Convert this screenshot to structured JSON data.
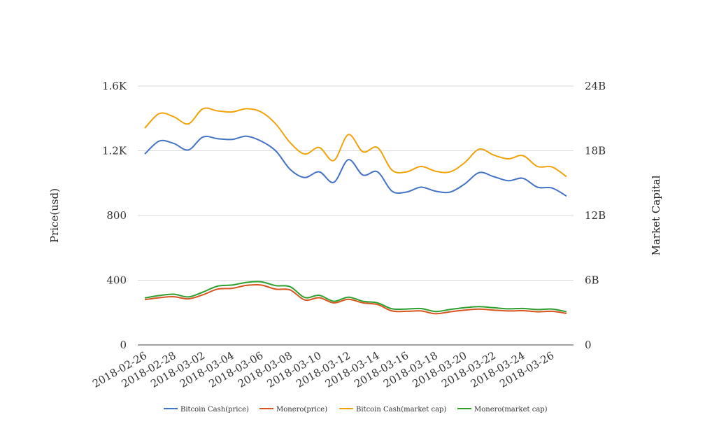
{
  "chart_data": {
    "type": "line",
    "title": "",
    "xlabel": "",
    "ylabel": "Price(usd)",
    "y2label": "Market Capital",
    "ylim": [
      0,
      1600
    ],
    "y2lim": [
      0,
      24000000000
    ],
    "yticks": [
      "0",
      "400",
      "800",
      "1.2K",
      "1.6K"
    ],
    "y2ticks": [
      "0",
      "6B",
      "12B",
      "18B",
      "24B"
    ],
    "xticks": [
      "2018-02-26",
      "2018-02-28",
      "2018-03-02",
      "2018-03-04",
      "2018-03-06",
      "2018-03-08",
      "2018-03-10",
      "2018-03-12",
      "2018-03-14",
      "2018-03-16",
      "2018-03-18",
      "2018-03-20",
      "2018-03-22",
      "2018-03-24",
      "2018-03-26"
    ],
    "x": [
      "2018-02-26",
      "2018-02-27",
      "2018-02-28",
      "2018-03-01",
      "2018-03-02",
      "2018-03-03",
      "2018-03-04",
      "2018-03-05",
      "2018-03-06",
      "2018-03-07",
      "2018-03-08",
      "2018-03-09",
      "2018-03-10",
      "2018-03-11",
      "2018-03-12",
      "2018-03-13",
      "2018-03-14",
      "2018-03-15",
      "2018-03-16",
      "2018-03-17",
      "2018-03-18",
      "2018-03-19",
      "2018-03-20",
      "2018-03-21",
      "2018-03-22",
      "2018-03-23",
      "2018-03-24",
      "2018-03-25",
      "2018-03-26",
      "2018-03-27"
    ],
    "grid": true,
    "legend": "bottom",
    "series": [
      {
        "name": "Bitcoin Cash(price)",
        "axis": "left",
        "color": "#4472c4",
        "values": [
          1180,
          1260,
          1245,
          1205,
          1285,
          1275,
          1270,
          1290,
          1260,
          1200,
          1085,
          1035,
          1070,
          1005,
          1145,
          1050,
          1070,
          950,
          945,
          975,
          950,
          945,
          995,
          1065,
          1040,
          1015,
          1030,
          975,
          970,
          920
        ]
      },
      {
        "name": "Monero(price)",
        "axis": "left",
        "color": "#d9541e",
        "values": [
          280,
          292,
          298,
          285,
          310,
          345,
          350,
          368,
          370,
          345,
          340,
          278,
          292,
          260,
          282,
          260,
          250,
          210,
          208,
          210,
          193,
          205,
          215,
          222,
          215,
          210,
          212,
          205,
          208,
          195
        ]
      },
      {
        "name": "Bitcoin Cash(market cap)",
        "axis": "right",
        "color": "#f0a30a",
        "values": [
          20100000000,
          21450000000,
          21150000000,
          20500000000,
          21900000000,
          21700000000,
          21600000000,
          21900000000,
          21600000000,
          20500000000,
          18750000000,
          17700000000,
          18300000000,
          17100000000,
          19500000000,
          17900000000,
          18300000000,
          16200000000,
          16050000000,
          16550000000,
          16100000000,
          16050000000,
          16900000000,
          18150000000,
          17600000000,
          17250000000,
          17550000000,
          16550000000,
          16500000000,
          15600000000
        ]
      },
      {
        "name": "Monero(market cap)",
        "axis": "right",
        "color": "#2e9e2e",
        "values": [
          4350000000,
          4580000000,
          4700000000,
          4450000000,
          4900000000,
          5450000000,
          5550000000,
          5800000000,
          5850000000,
          5500000000,
          5400000000,
          4400000000,
          4600000000,
          4050000000,
          4430000000,
          4050000000,
          3900000000,
          3350000000,
          3330000000,
          3370000000,
          3100000000,
          3290000000,
          3450000000,
          3550000000,
          3450000000,
          3350000000,
          3380000000,
          3280000000,
          3330000000,
          3080000000
        ]
      }
    ]
  }
}
